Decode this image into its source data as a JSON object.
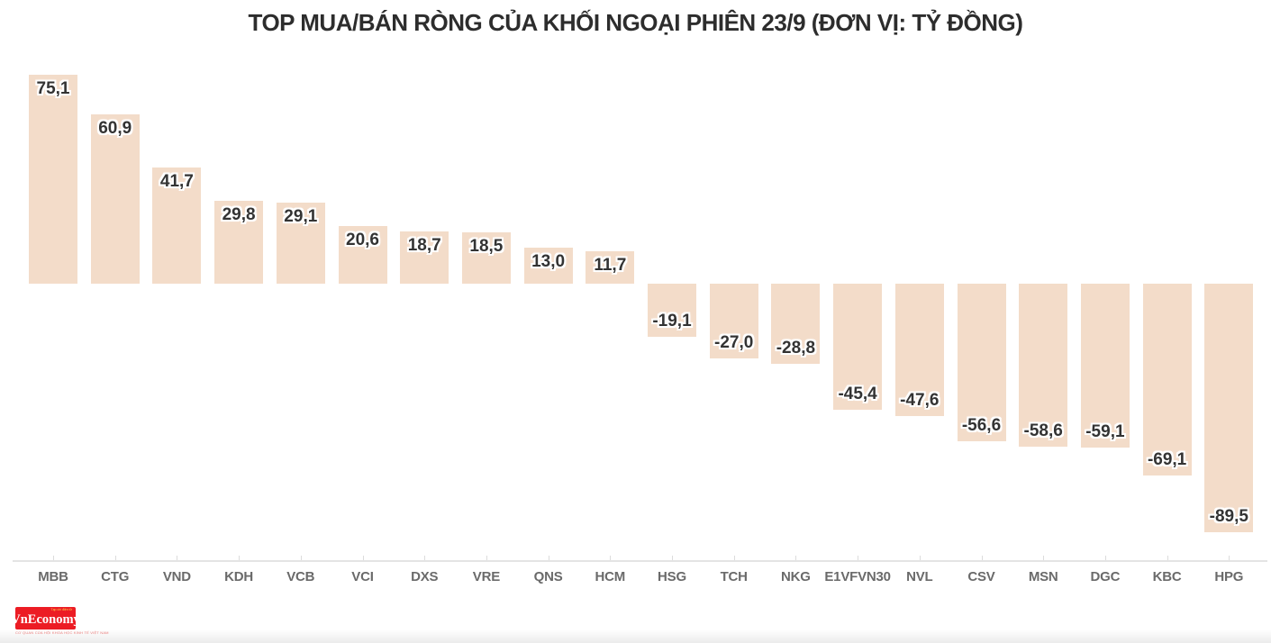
{
  "chart_data": {
    "type": "bar",
    "title": "TOP MUA/BÁN RÒNG CỦA KHỐI NGOẠI PHIÊN 23/9 (ĐƠN VỊ: TỶ ĐỒNG)",
    "categories": [
      "MBB",
      "CTG",
      "VND",
      "KDH",
      "VCB",
      "VCI",
      "DXS",
      "VRE",
      "QNS",
      "HCM",
      "HSG",
      "TCH",
      "NKG",
      "E1VFVN30",
      "NVL",
      "CSV",
      "MSN",
      "DGC",
      "KBC",
      "HPG"
    ],
    "values": [
      75.1,
      60.9,
      41.7,
      29.8,
      29.1,
      20.6,
      18.7,
      18.5,
      13.0,
      11.7,
      -19.1,
      -27.0,
      -28.8,
      -45.4,
      -47.6,
      -56.6,
      -58.6,
      -59.1,
      -69.1,
      -89.5
    ],
    "value_labels": [
      "75,1",
      "60,9",
      "41,7",
      "29,8",
      "29,1",
      "20,6",
      "18,7",
      "18,5",
      "13,0",
      "11,7",
      "-19,1",
      "-27,0",
      "-28,8",
      "-45,4",
      "-47,6",
      "-56,6",
      "-58,6",
      "-59,1",
      "-69,1",
      "-89,5"
    ],
    "xlabel": "",
    "ylabel": "",
    "unit": "tỷ đồng",
    "grid": false,
    "legend": "none",
    "bar_color": "#f3dcc9",
    "value_label_color": "#333333",
    "axis_label_color": "#6a6a6a",
    "title_color": "#2d2d2d"
  },
  "footer": {
    "logo_text": "VnEconomy",
    "logo_small_text": "Tạp chí điện tử",
    "logo_tagline": "CƠ QUAN CỦA HỘI KHOA HỌC KINH TẾ VIỆT NAM",
    "logo_bg": "#ec1c24"
  }
}
